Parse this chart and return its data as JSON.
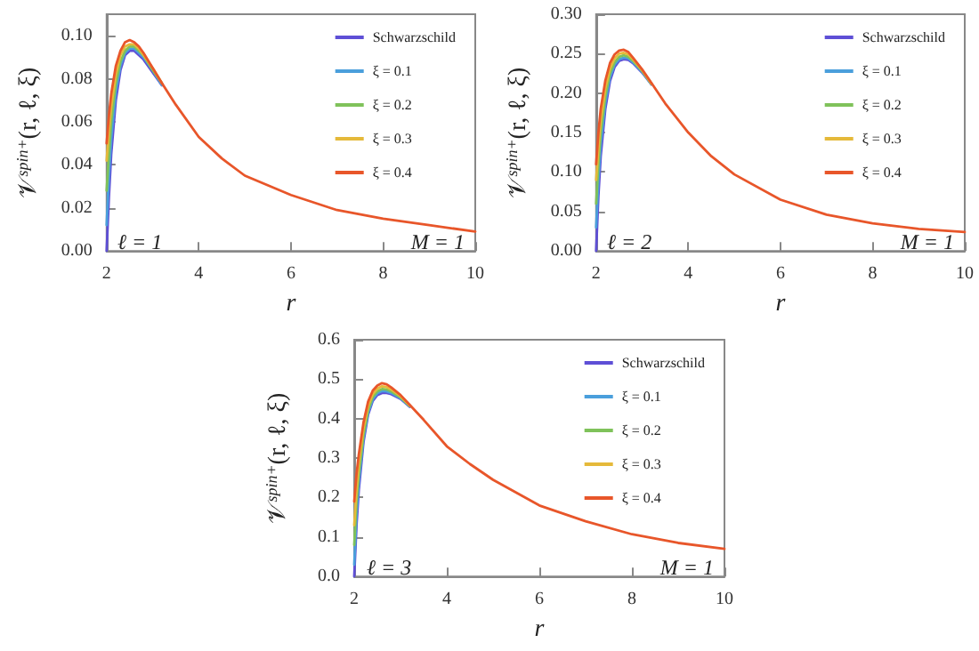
{
  "chart_data": [
    {
      "type": "line",
      "xlabel": "r",
      "ylabel": "𝒱$^{spin+}$(r, ℓ, ξ)",
      "annotations": [
        "ℓ = 1",
        "M = 1"
      ],
      "legend": "top right",
      "grid": false,
      "x": [
        2,
        2.05,
        2.1,
        2.2,
        2.3,
        2.4,
        2.5,
        2.6,
        2.7,
        2.8,
        3,
        3.2,
        3.5,
        4,
        4.5,
        5,
        6,
        7,
        8,
        9,
        10
      ],
      "xlim": [
        2,
        10
      ],
      "xticks": [
        2,
        4,
        6,
        8,
        10
      ],
      "ylim": [
        0,
        0.11
      ],
      "yticks": [
        {
          "value": 0,
          "label": "0.00"
        },
        {
          "value": 0.02,
          "label": "0.02"
        },
        {
          "value": 0.04,
          "label": "0.04"
        },
        {
          "value": 0.06,
          "label": "0.06"
        },
        {
          "value": 0.08,
          "label": "0.08"
        },
        {
          "value": 0.1,
          "label": "0.10"
        }
      ],
      "series": [
        {
          "name": "Schwarzschild",
          "color": "#5e4fd6",
          "values": [
            0,
            0.025,
            0.045,
            0.07,
            0.084,
            0.091,
            0.093,
            0.093,
            0.091,
            0.089,
            0.083,
            0.077,
            null,
            null,
            null,
            null,
            null,
            null,
            null,
            null,
            null
          ]
        },
        {
          "name": "ξ = 0.1",
          "color": "#4a9fdc",
          "values": [
            0.012,
            0.035,
            0.052,
            0.074,
            0.086,
            0.092,
            0.094,
            0.094,
            0.092,
            0.09,
            0.084,
            0.077,
            null,
            null,
            null,
            null,
            null,
            null,
            null,
            null,
            null
          ]
        },
        {
          "name": "ξ = 0.2",
          "color": "#7fc25a",
          "values": [
            0.028,
            0.045,
            0.06,
            0.078,
            0.088,
            0.093,
            0.095,
            0.095,
            0.093,
            0.091,
            0.084,
            0.078,
            null,
            null,
            null,
            null,
            null,
            null,
            null,
            null,
            null
          ]
        },
        {
          "name": "ξ = 0.3",
          "color": "#e5b93a",
          "values": [
            0.042,
            0.056,
            0.067,
            0.082,
            0.091,
            0.095,
            0.096,
            0.096,
            0.094,
            0.091,
            0.085,
            0.078,
            null,
            null,
            null,
            null,
            null,
            null,
            null,
            null,
            null
          ]
        },
        {
          "name": "ξ = 0.4",
          "color": "#e8562a",
          "values": [
            0.05,
            0.063,
            0.073,
            0.086,
            0.093,
            0.097,
            0.098,
            0.097,
            0.095,
            0.092,
            0.085,
            0.078,
            0.068,
            0.053,
            0.043,
            0.035,
            0.026,
            0.019,
            0.015,
            0.012,
            0.009
          ]
        }
      ]
    },
    {
      "type": "line",
      "xlabel": "r",
      "ylabel": "𝒱$^{spin+}$(r, ℓ, ξ)",
      "annotations": [
        "ℓ = 2",
        "M = 1"
      ],
      "legend": "top right",
      "grid": false,
      "x": [
        2,
        2.05,
        2.1,
        2.2,
        2.3,
        2.4,
        2.5,
        2.6,
        2.7,
        2.8,
        3,
        3.2,
        3.5,
        4,
        4.5,
        5,
        6,
        7,
        8,
        9,
        10
      ],
      "xlim": [
        2,
        10
      ],
      "xticks": [
        2,
        4,
        6,
        8,
        10
      ],
      "ylim": [
        0,
        0.3
      ],
      "yticks": [
        {
          "value": 0,
          "label": "0.00"
        },
        {
          "value": 0.05,
          "label": "0.05"
        },
        {
          "value": 0.1,
          "label": "0.10"
        },
        {
          "value": 0.15,
          "label": "0.15"
        },
        {
          "value": 0.2,
          "label": "0.20"
        },
        {
          "value": 0.25,
          "label": "0.25"
        },
        {
          "value": 0.3,
          "label": "0.30"
        }
      ],
      "series": [
        {
          "name": "Schwarzschild",
          "color": "#5e4fd6",
          "values": [
            0,
            0.07,
            0.12,
            0.18,
            0.215,
            0.233,
            0.241,
            0.243,
            0.242,
            0.238,
            0.226,
            0.211,
            null,
            null,
            null,
            null,
            null,
            null,
            null,
            null,
            null
          ]
        },
        {
          "name": "ξ = 0.1",
          "color": "#4a9fdc",
          "values": [
            0.03,
            0.09,
            0.135,
            0.188,
            0.22,
            0.236,
            0.243,
            0.245,
            0.244,
            0.239,
            0.227,
            0.211,
            null,
            null,
            null,
            null,
            null,
            null,
            null,
            null,
            null
          ]
        },
        {
          "name": "ξ = 0.2",
          "color": "#7fc25a",
          "values": [
            0.06,
            0.11,
            0.15,
            0.196,
            0.225,
            0.239,
            0.246,
            0.248,
            0.246,
            0.241,
            0.228,
            0.212,
            null,
            null,
            null,
            null,
            null,
            null,
            null,
            null,
            null
          ]
        },
        {
          "name": "ξ = 0.3",
          "color": "#e5b93a",
          "values": [
            0.09,
            0.13,
            0.165,
            0.206,
            0.231,
            0.244,
            0.25,
            0.251,
            0.249,
            0.243,
            0.229,
            0.212,
            null,
            null,
            null,
            null,
            null,
            null,
            null,
            null,
            null
          ]
        },
        {
          "name": "ξ = 0.4",
          "color": "#e8562a",
          "values": [
            0.11,
            0.15,
            0.18,
            0.216,
            0.238,
            0.249,
            0.254,
            0.255,
            0.252,
            0.245,
            0.23,
            0.213,
            0.187,
            0.15,
            0.12,
            0.097,
            0.065,
            0.046,
            0.035,
            0.028,
            0.024
          ]
        }
      ]
    },
    {
      "type": "line",
      "xlabel": "r",
      "ylabel": "𝒱$^{spin+}$(r, ℓ, ξ)",
      "annotations": [
        "ℓ = 3",
        "M = 1"
      ],
      "legend": "top right",
      "grid": false,
      "x": [
        2,
        2.05,
        2.1,
        2.2,
        2.3,
        2.4,
        2.5,
        2.6,
        2.7,
        2.8,
        3,
        3.2,
        3.5,
        4,
        4.5,
        5,
        6,
        7,
        8,
        9,
        10
      ],
      "xlim": [
        2,
        10
      ],
      "xticks": [
        2,
        4,
        6,
        8,
        10
      ],
      "ylim": [
        0,
        0.6
      ],
      "yticks": [
        {
          "value": 0,
          "label": "0.0"
        },
        {
          "value": 0.1,
          "label": "0.1"
        },
        {
          "value": 0.2,
          "label": "0.2"
        },
        {
          "value": 0.3,
          "label": "0.3"
        },
        {
          "value": 0.4,
          "label": "0.4"
        },
        {
          "value": 0.5,
          "label": "0.5"
        },
        {
          "value": 0.6,
          "label": "0.6"
        }
      ],
      "series": [
        {
          "name": "Schwarzschild",
          "color": "#5e4fd6",
          "values": [
            0,
            0.13,
            0.22,
            0.34,
            0.41,
            0.445,
            0.46,
            0.465,
            0.465,
            0.462,
            0.45,
            0.43,
            null,
            null,
            null,
            null,
            null,
            null,
            null,
            null,
            null
          ]
        },
        {
          "name": "ξ = 0.1",
          "color": "#4a9fdc",
          "values": [
            0.03,
            0.16,
            0.24,
            0.35,
            0.415,
            0.449,
            0.464,
            0.47,
            0.469,
            0.465,
            0.452,
            0.431,
            null,
            null,
            null,
            null,
            null,
            null,
            null,
            null,
            null
          ]
        },
        {
          "name": "ξ = 0.2",
          "color": "#7fc25a",
          "values": [
            0.08,
            0.19,
            0.26,
            0.36,
            0.422,
            0.455,
            0.469,
            0.475,
            0.474,
            0.469,
            0.454,
            0.432,
            null,
            null,
            null,
            null,
            null,
            null,
            null,
            null,
            null
          ]
        },
        {
          "name": "ξ = 0.3",
          "color": "#e5b93a",
          "values": [
            0.13,
            0.22,
            0.285,
            0.375,
            0.432,
            0.462,
            0.476,
            0.482,
            0.48,
            0.474,
            0.457,
            0.433,
            null,
            null,
            null,
            null,
            null,
            null,
            null,
            null,
            null
          ]
        },
        {
          "name": "ξ = 0.4",
          "color": "#e8562a",
          "values": [
            0.19,
            0.26,
            0.31,
            0.39,
            0.443,
            0.471,
            0.484,
            0.49,
            0.487,
            0.479,
            0.46,
            0.435,
            0.397,
            0.33,
            0.285,
            0.245,
            0.18,
            0.14,
            0.107,
            0.085,
            0.07
          ]
        }
      ]
    }
  ]
}
